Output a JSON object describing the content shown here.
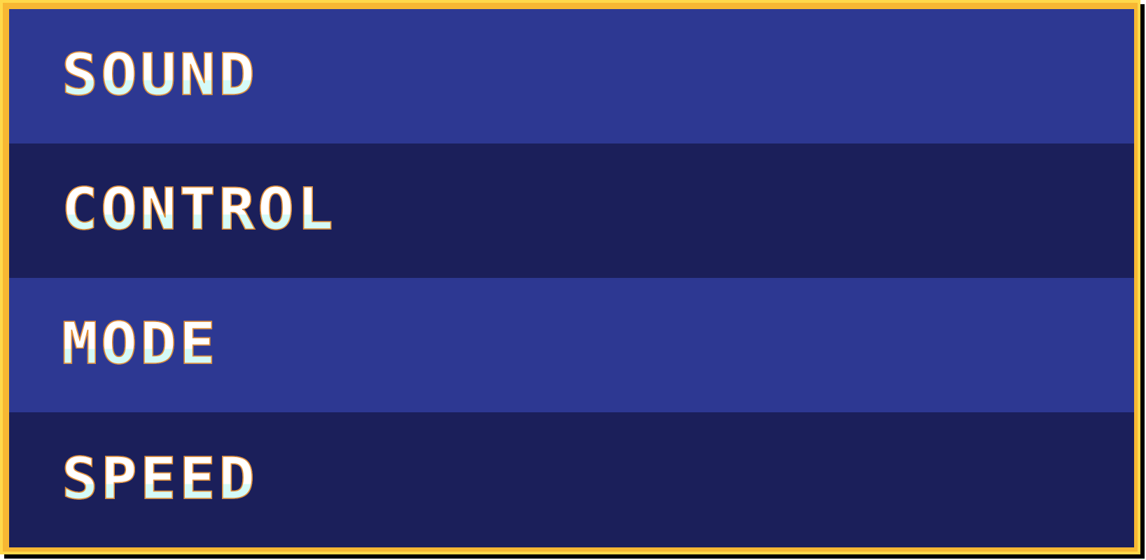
{
  "menu": {
    "items": [
      {
        "label": "SOUND"
      },
      {
        "label": "CONTROL"
      },
      {
        "label": "MODE"
      },
      {
        "label": "SPEED"
      }
    ]
  },
  "colors": {
    "frame_outer": "#ffd84a",
    "frame_inner": "#f7b733",
    "row_light": "#2d3892",
    "row_dark": "#1b1f5a",
    "text_top": "#ffffff",
    "text_bottom": "#d4fbf8",
    "text_outline": "#e28a2e",
    "shadow": "#000000"
  }
}
